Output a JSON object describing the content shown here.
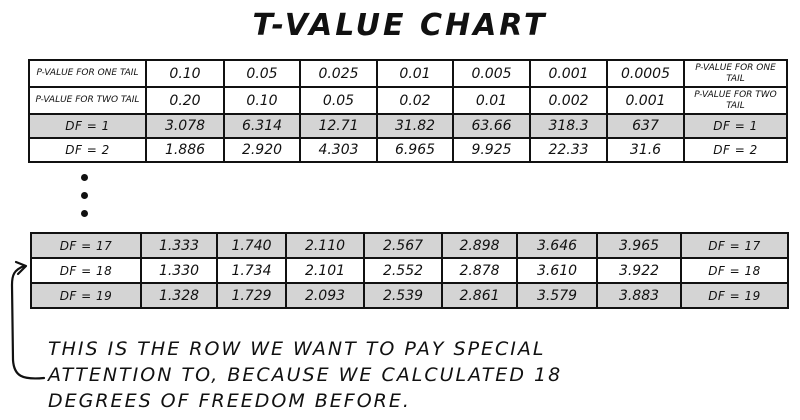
{
  "title": "T-value chart",
  "top_table": {
    "rows": [
      {
        "kind": "header",
        "shaded": false,
        "cells": [
          "p-value for one tail",
          "0.10",
          "0.05",
          "0.025",
          "0.01",
          "0.005",
          "0.001",
          "0.0005",
          "p-value for one tail"
        ]
      },
      {
        "kind": "header",
        "shaded": false,
        "cells": [
          "p-value for two tail",
          "0.20",
          "0.10",
          "0.05",
          "0.02",
          "0.01",
          "0.002",
          "0.001",
          "p-value for two tail"
        ]
      },
      {
        "kind": "data",
        "shaded": true,
        "cells": [
          "df = 1",
          "3.078",
          "6.314",
          "12.71",
          "31.82",
          "63.66",
          "318.3",
          "637",
          "df = 1"
        ]
      },
      {
        "kind": "data",
        "shaded": false,
        "cells": [
          "df = 2",
          "1.886",
          "2.920",
          "4.303",
          "6.965",
          "9.925",
          "22.33",
          "31.6",
          "df = 2"
        ]
      }
    ]
  },
  "bottom_table": {
    "rows": [
      {
        "shaded": true,
        "cells": [
          "df = 17",
          "1.333",
          "1.740",
          "2.110",
          "2.567",
          "2.898",
          "3.646",
          "3.965",
          "df = 17"
        ]
      },
      {
        "shaded": false,
        "cells": [
          "df = 18",
          "1.330",
          "1.734",
          "2.101",
          "2.552",
          "2.878",
          "3.610",
          "3.922",
          "df = 18"
        ]
      },
      {
        "shaded": true,
        "cells": [
          "df = 19",
          "1.328",
          "1.729",
          "2.093",
          "2.539",
          "2.861",
          "3.579",
          "3.883",
          "df = 19"
        ]
      }
    ]
  },
  "ellipsis_dots": 3,
  "note_lines": [
    "This is the row we want to pay special",
    "attention to, because we calculated 18",
    "degrees of freedom before."
  ]
}
